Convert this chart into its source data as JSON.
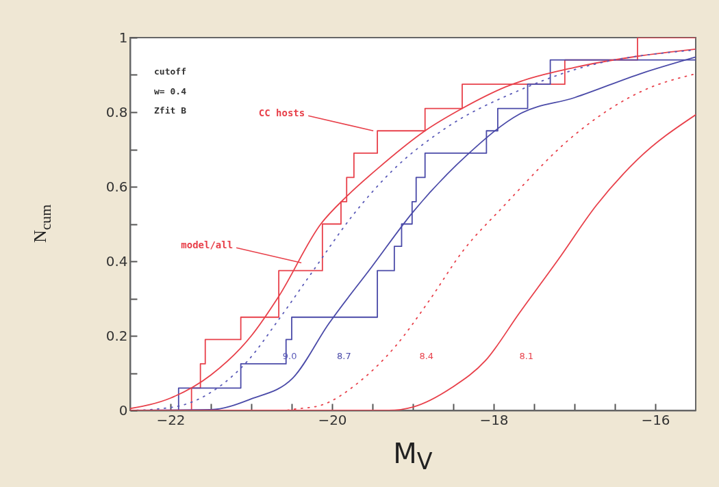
{
  "chart_data": {
    "type": "line",
    "xlabel": "M$_{V}$",
    "ylabel": "N$_{cum}$",
    "xlim": [
      -22.5,
      -15.5
    ],
    "xticks": [
      -22,
      {
        "value": -21.5,
        "label": null
      },
      {
        "value": -21,
        "label": null
      },
      {
        "value": -20.5,
        "label": null
      },
      -20,
      {
        "value": -19.5,
        "label": null
      },
      {
        "value": -19,
        "label": null
      },
      {
        "value": -18.5,
        "label": null
      },
      -18,
      {
        "value": -17.5,
        "label": null
      },
      {
        "value": -17,
        "label": null
      },
      {
        "value": -16.5,
        "label": null
      },
      -16
    ],
    "ylim": [
      0,
      1
    ],
    "yticks": [
      0,
      {
        "value": 0.1,
        "label": null
      },
      0.2,
      {
        "value": 0.3,
        "label": null
      },
      0.4,
      {
        "value": 0.5,
        "label": null
      },
      0.6,
      {
        "value": 0.7,
        "label": null
      },
      0.8,
      {
        "value": 0.9,
        "label": null
      },
      1
    ],
    "series": [
      {
        "type": "step",
        "color": "#e8404a",
        "x": [
          -22.5,
          -21.74,
          -21.63,
          -21.57,
          -21.13,
          -20.66,
          -20.12,
          -19.89,
          -19.82,
          -19.73,
          -19.44,
          -18.85,
          -18.39,
          -17.12,
          -16.22,
          -15.5
        ],
        "values": [
          0,
          0.06,
          0.125,
          0.19,
          0.25,
          0.375,
          0.5,
          0.56,
          0.625,
          0.69,
          0.75,
          0.81,
          0.875,
          0.94,
          1,
          1
        ]
      },
      {
        "type": "step",
        "color": "#4a4aa8",
        "x": [
          -22.5,
          -21.9,
          -21.13,
          -20.57,
          -20.5,
          -19.44,
          -19.23,
          -19.14,
          -19.01,
          -18.96,
          -18.85,
          -18.09,
          -17.95,
          -17.58,
          -17.3,
          -15.5
        ],
        "values": [
          0,
          0.06,
          0.125,
          0.19,
          0.25,
          0.375,
          0.44,
          0.5,
          0.56,
          0.625,
          0.69,
          0.75,
          0.81,
          0.875,
          0.94,
          0.94
        ]
      },
      {
        "type": "line",
        "color": "#e8404a",
        "x": [
          -22.5,
          -22,
          -21.5,
          -21,
          -20.66,
          -20.14,
          -19.82,
          -19.44,
          -18.85,
          -18.39,
          -17.85,
          -17,
          -16.22,
          -15.5
        ],
        "values": [
          0.005,
          0.033,
          0.095,
          0.2,
          0.306,
          0.5,
          0.574,
          0.648,
          0.75,
          0.81,
          0.868,
          0.92,
          0.95,
          0.969
        ]
      },
      {
        "type": "line",
        "name": "9.0",
        "line_style": "dotted",
        "color": "#5a5ab8",
        "x": [
          -22.5,
          -22.2,
          -21.79,
          -21.42,
          -21.04,
          -20.66,
          -20.24,
          -19.76,
          -19.26,
          -18.63,
          -17.68,
          -17,
          -15.5
        ],
        "values": [
          0,
          0.003,
          0.018,
          0.06,
          0.134,
          0.244,
          0.373,
          0.519,
          0.642,
          0.752,
          0.859,
          0.914,
          0.967
        ]
      },
      {
        "type": "line",
        "name": "8.7",
        "color": "#4a4aa8",
        "x": [
          -22.5,
          -21.5,
          -21,
          -20.49,
          -20.04,
          -19.51,
          -19,
          -18.33,
          -17.68,
          -17,
          -16.16,
          -15.5
        ],
        "values": [
          0,
          0.002,
          0.031,
          0.086,
          0.233,
          0.385,
          0.532,
          0.685,
          0.795,
          0.839,
          0.905,
          0.948
        ]
      },
      {
        "type": "line",
        "name": "8.4",
        "line_style": "dotted",
        "color": "#e8404a",
        "x": [
          -22.5,
          -20.6,
          -20.44,
          -20.15,
          -19.65,
          -19.22,
          -18.8,
          -18.38,
          -17.89,
          -17,
          -16.16,
          -15.5
        ],
        "values": [
          0,
          0,
          0.004,
          0.013,
          0.079,
          0.171,
          0.294,
          0.428,
          0.545,
          0.739,
          0.857,
          0.903
        ]
      },
      {
        "type": "line",
        "name": "8.1",
        "color": "#e8404a",
        "x": [
          -22.5,
          -19.3,
          -19,
          -18.52,
          -18.1,
          -17.68,
          -17.2,
          -16.73,
          -16.22,
          -15.5
        ],
        "values": [
          0,
          0,
          0.009,
          0.061,
          0.134,
          0.262,
          0.405,
          0.55,
          0.673,
          0.793
        ]
      }
    ],
    "annotations": [
      "cutoff",
      "w= 0.4",
      "Zfit  B",
      {
        "text": "CC hosts",
        "x": -19.49,
        "y": 0.75
      },
      {
        "text": "model/all",
        "x": -20.38,
        "y": 0.396
      }
    ]
  }
}
